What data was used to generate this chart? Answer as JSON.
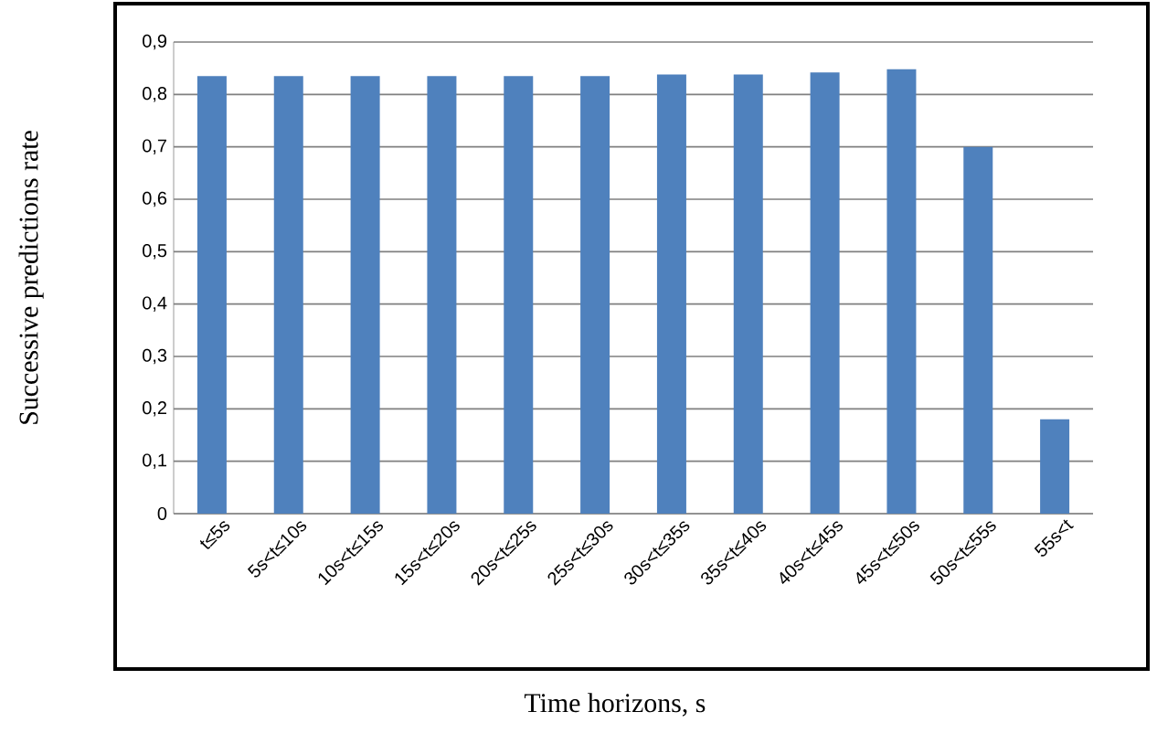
{
  "chart_data": {
    "type": "bar",
    "xlabel": "Time horizons, s",
    "ylabel": "Successive predictions rate",
    "categories": [
      "t≤5s",
      "5s<t≤10s",
      "10s<t≤15s",
      "15s<t≤20s",
      "20s<t≤25s",
      "25s<t≤30s",
      "30s<t≤35s",
      "35s<t≤40s",
      "40s<t≤45s",
      "45s<t≤50s",
      "50s<t≤55s",
      "55s<t"
    ],
    "values": [
      0.835,
      0.835,
      0.835,
      0.835,
      0.835,
      0.835,
      0.838,
      0.838,
      0.842,
      0.848,
      0.7,
      0.18
    ],
    "color": "#4f81bd",
    "ylim": [
      0,
      0.9
    ],
    "yticks": [
      0,
      {
        "value": 0.1,
        "label": "0,1"
      },
      {
        "value": 0.2,
        "label": "0,2"
      },
      {
        "value": 0.3,
        "label": "0,3"
      },
      {
        "value": 0.4,
        "label": "0,4"
      },
      {
        "value": 0.5,
        "label": "0,5"
      },
      {
        "value": 0.6,
        "label": "0,6"
      },
      {
        "value": 0.7,
        "label": "0,7"
      },
      {
        "value": 0.8,
        "label": "0,8"
      },
      {
        "value": 0.9,
        "label": "0,9"
      }
    ],
    "grid": "y"
  }
}
